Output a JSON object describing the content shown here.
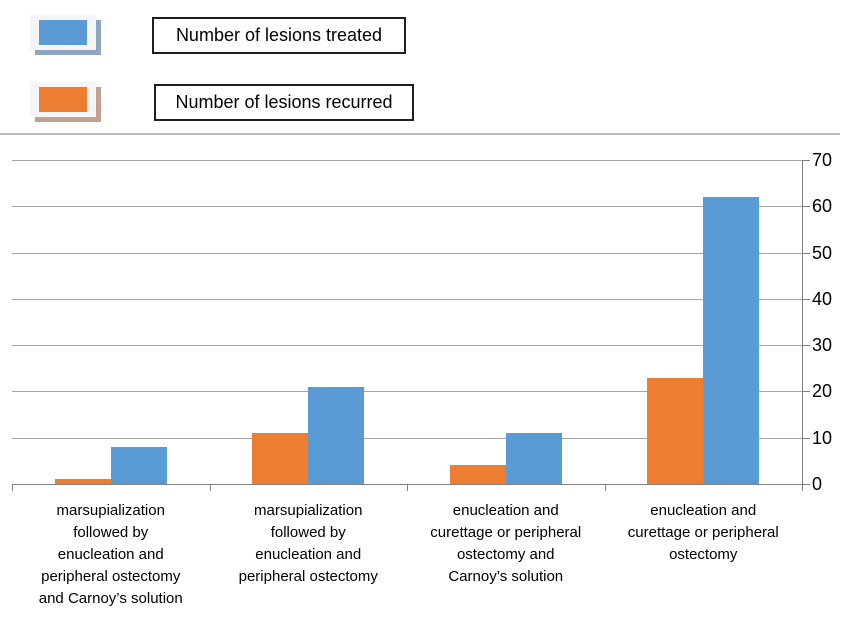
{
  "legend": {
    "items": [
      {
        "label": "Number of lesions treated",
        "color": "#5B9BD5",
        "shadow_color": "#8EA7C0",
        "swatch": "blue-swatch"
      },
      {
        "label": "Number of lesions recurred",
        "color": "#ED7D31",
        "shadow_color": "#C2A190",
        "swatch": "orange-swatch"
      }
    ]
  },
  "chart_data": {
    "type": "bar",
    "title": "",
    "xlabel": "",
    "ylabel": "",
    "categories": [
      "marsupialization followed by enucleation and peripheral ostectomy and Carnoy’s solution",
      "marsupialization followed by enucleation and peripheral ostectomy",
      "enucleation and curettage or peripheral ostectomy and Carnoy’s solution",
      "enucleation and curettage or peripheral ostectomy"
    ],
    "category_lines": [
      [
        "marsupialization",
        "followed by",
        "enucleation and",
        "peripheral ostectomy",
        "and Carnoy’s solution"
      ],
      [
        "marsupialization",
        "followed by",
        "enucleation and",
        "peripheral ostectomy"
      ],
      [
        "enucleation and",
        "curettage or peripheral",
        "ostectomy and",
        "Carnoy’s solution"
      ],
      [
        "enucleation and",
        "curettage or peripheral",
        "ostectomy"
      ]
    ],
    "series": [
      {
        "name": "Number of lesions recurred",
        "color": "#ED7D31",
        "values": [
          1,
          11,
          4,
          23
        ]
      },
      {
        "name": "Number of lesions treated",
        "color": "#5B9BD5",
        "values": [
          8,
          21,
          11,
          62
        ]
      }
    ],
    "ylim": [
      0,
      70
    ],
    "yticks": [
      0,
      10,
      20,
      30,
      40,
      50,
      60,
      70
    ],
    "axis_side": "right",
    "grid": true,
    "gridline_color": "#A6A6A6",
    "axis_color": "#808080",
    "legend_position": "top-left"
  }
}
